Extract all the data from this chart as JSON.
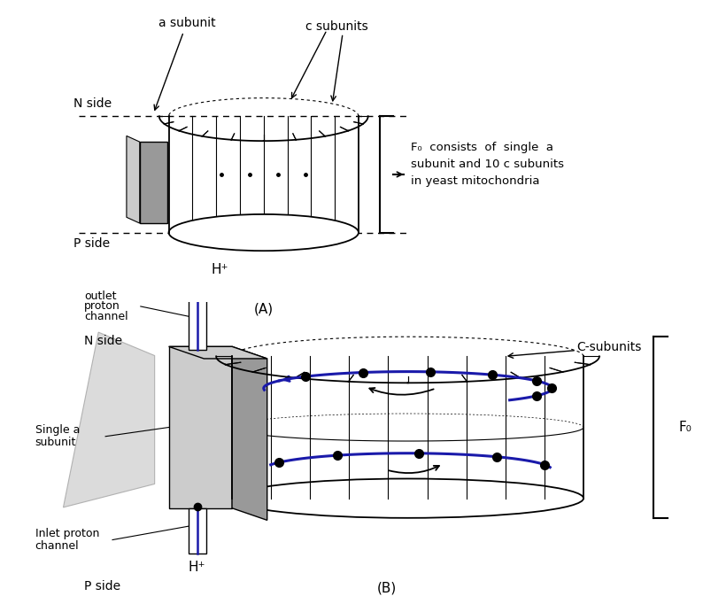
{
  "bg_color": "#ffffff",
  "text_color": "#000000",
  "blue_color": "#1a1aaa",
  "gray_light": "#cccccc",
  "gray_medium": "#999999",
  "gray_dark": "#707070",
  "panel_A_label": "(A)",
  "panel_B_label": "(B)",
  "N_side_label": "N side",
  "P_side_label": "P side",
  "a_subunit_label": "a subunit",
  "c_subunits_label": "c subunits",
  "F0_text": "F₀  consists  of  single  a\nsubunit and 10 c subunits\nin yeast mitochondria",
  "F0_label": "F₀",
  "outlet_label_1": "outlet",
  "outlet_label_2": "proton",
  "outlet_label_3": "channel",
  "inlet_label_1": "Inlet proton",
  "inlet_label_2": "channel",
  "single_a_label_1": "Single a",
  "single_a_label_2": "subunit",
  "C_subunits_label": "C-subunits",
  "H_plus_top": "H⁺",
  "H_plus_bottom": "H⁺"
}
